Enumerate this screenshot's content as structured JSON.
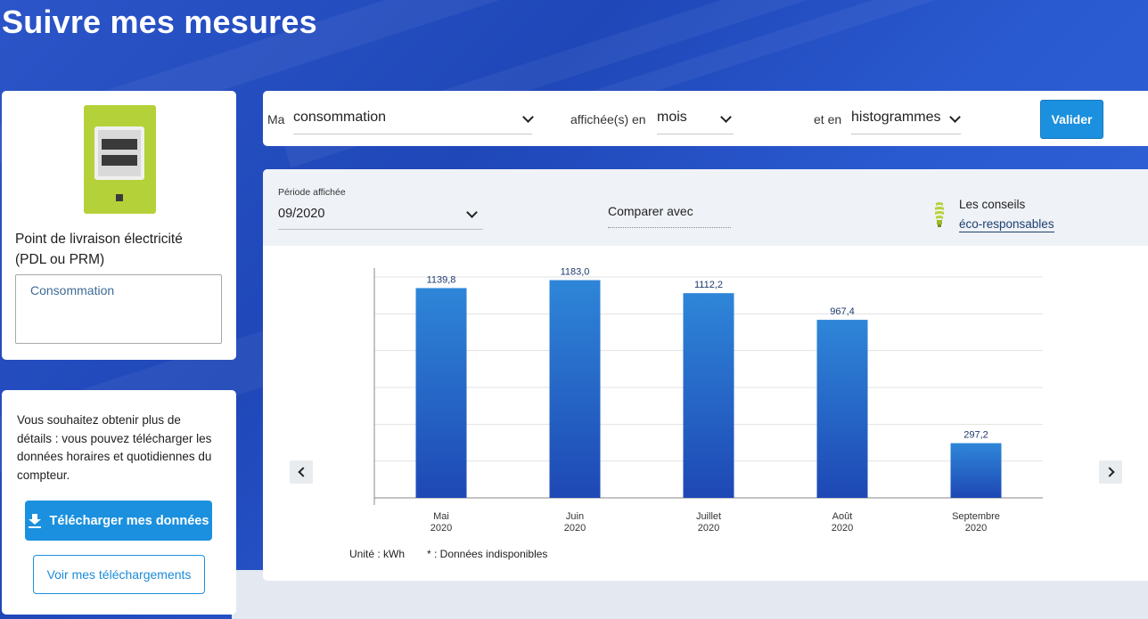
{
  "page": {
    "title": "Suivre mes mesures"
  },
  "pdl": {
    "title": "Point de livraison électricité (PDL ou PRM)",
    "field_value": "Consommation",
    "meter_icon": "electric-meter-icon"
  },
  "download": {
    "text": "Vous souhaitez obtenir plus de détails : vous pouvez télécharger les données horaires et quotidiennes du compteur.",
    "download_button": "Télécharger mes données",
    "see_button": "Voir mes téléchargements"
  },
  "filters": {
    "label_ma": "Ma",
    "measure": "consommation",
    "label_affichee": "affichée(s) en",
    "unit_period": "mois",
    "label_et_en": "et en",
    "display_type": "histogrammes",
    "validate_button": "Valider"
  },
  "chart_header": {
    "period_label": "Période affichée",
    "period_value": "09/2020",
    "compare_label": "Comparer avec",
    "conseils_line1": "Les conseils",
    "conseils_line2": "éco-responsables"
  },
  "legend": {
    "unit": "Unité : kWh",
    "unavailable": "* : Données indisponibles"
  },
  "colors": {
    "bar_top": "#2e86d8",
    "bar_bottom": "#1e48b5",
    "label": "#1c3a6e",
    "accent": "#1b90de"
  },
  "chart_data": {
    "type": "bar",
    "categories": [
      "Mai 2020",
      "Juin 2020",
      "Juillet 2020",
      "Août 2020",
      "Septembre 2020"
    ],
    "category_lines": [
      [
        "Mai",
        "2020"
      ],
      [
        "Juin",
        "2020"
      ],
      [
        "Juillet",
        "2020"
      ],
      [
        "Août",
        "2020"
      ],
      [
        "Septembre",
        "2020"
      ]
    ],
    "values": [
      1139.8,
      1183.0,
      1112.2,
      967.4,
      297.2
    ],
    "value_labels": [
      "1139,8",
      "1183,0",
      "1112,2",
      "967,4",
      "297,2"
    ],
    "ylim": [
      0,
      1200
    ],
    "grid": true
  }
}
